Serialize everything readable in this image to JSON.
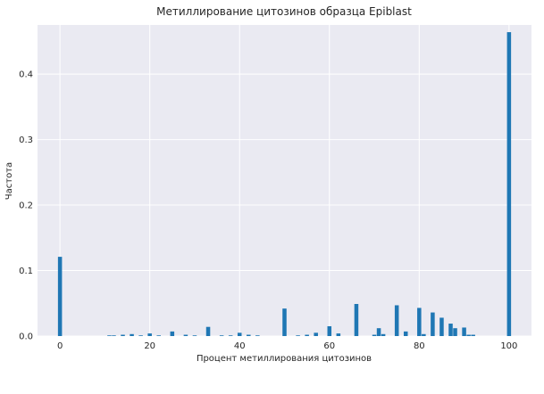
{
  "chart_data": {
    "type": "bar",
    "title": "Метиллирование цитозинов образца Epiblast",
    "xlabel": "Процент метиллирования цитозинов",
    "ylabel": "Частота",
    "xlim": [
      -5,
      105
    ],
    "ylim": [
      0,
      0.475
    ],
    "xticks": [
      0,
      20,
      40,
      60,
      80,
      100
    ],
    "yticks": [
      0.0,
      0.1,
      0.2,
      0.3,
      0.4
    ],
    "ytick_labels": [
      "0.0",
      "0.1",
      "0.2",
      "0.3",
      "0.4"
    ],
    "bar_width": 1,
    "grid": true,
    "color": "#1f77b4",
    "x": [
      0,
      11,
      12,
      14,
      16,
      18,
      20,
      22,
      25,
      28,
      30,
      33,
      36,
      38,
      40,
      42,
      44,
      50,
      53,
      55,
      57,
      60,
      62,
      66,
      70,
      71,
      72,
      75,
      77,
      80,
      81,
      83,
      85,
      87,
      88,
      90,
      91,
      92,
      100
    ],
    "values": [
      0.121,
      0.001,
      0.001,
      0.002,
      0.003,
      0.001,
      0.004,
      0.001,
      0.007,
      0.002,
      0.001,
      0.014,
      0.001,
      0.001,
      0.005,
      0.002,
      0.001,
      0.042,
      0.001,
      0.002,
      0.005,
      0.015,
      0.004,
      0.049,
      0.002,
      0.012,
      0.003,
      0.047,
      0.007,
      0.043,
      0.003,
      0.036,
      0.028,
      0.019,
      0.012,
      0.013,
      0.002,
      0.002,
      0.464
    ]
  }
}
